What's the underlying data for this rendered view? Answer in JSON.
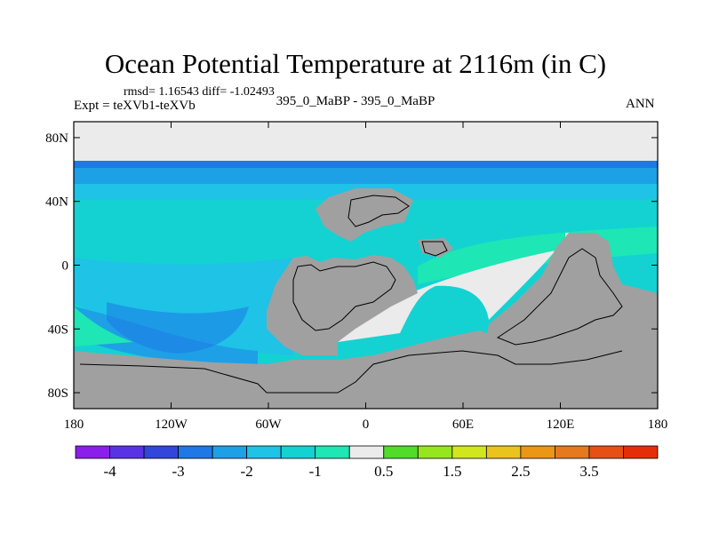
{
  "title": "Ocean Potential Temperature at 2116m (in C)",
  "stats": "rmsd= 1.16543 diff= -1.02493",
  "experiment": "Expt = teXVb1-teXVb",
  "case": "395_0_MaBP - 395_0_MaBP",
  "season": "ANN",
  "lat_ticks": [
    {
      "label": "80N",
      "value": 80
    },
    {
      "label": "40N",
      "value": 40
    },
    {
      "label": "0",
      "value": 0
    },
    {
      "label": "40S",
      "value": -40
    },
    {
      "label": "80S",
      "value": -80
    }
  ],
  "lon_ticks": [
    {
      "label": "180",
      "value": -180
    },
    {
      "label": "120W",
      "value": -120
    },
    {
      "label": "60W",
      "value": -60
    },
    {
      "label": "0",
      "value": 0
    },
    {
      "label": "60E",
      "value": 60
    },
    {
      "label": "120E",
      "value": 120
    },
    {
      "label": "180",
      "value": 180
    }
  ],
  "colorbar": {
    "colors": [
      "#8c1eeb",
      "#5a32e6",
      "#3246dc",
      "#1e78e6",
      "#1ea0e6",
      "#1ec3e6",
      "#14d2d2",
      "#1ee6b4",
      "#ebebeb",
      "#50dc28",
      "#96e61e",
      "#d2e61e",
      "#ebc31e",
      "#eb9614",
      "#e6781e",
      "#e65014",
      "#e62d0a"
    ],
    "labels": [
      {
        "text": "-4",
        "index": 1
      },
      {
        "text": "-3",
        "index": 3
      },
      {
        "text": "-2",
        "index": 5
      },
      {
        "text": "-1",
        "index": 7
      },
      {
        "text": "0.5",
        "index": 9
      },
      {
        "text": "1.5",
        "index": 11
      },
      {
        "text": "2.5",
        "index": 13
      },
      {
        "text": "3.5",
        "index": 15
      }
    ]
  },
  "colors": {
    "land": "#a0a0a0",
    "near_zero": "#ebebeb",
    "band_deep": "#1e78e6",
    "band_mid": "#1ea0e6",
    "band_light": "#1ec3e6",
    "band_cyan": "#14d2d2",
    "band_teal": "#1ee6b4"
  }
}
